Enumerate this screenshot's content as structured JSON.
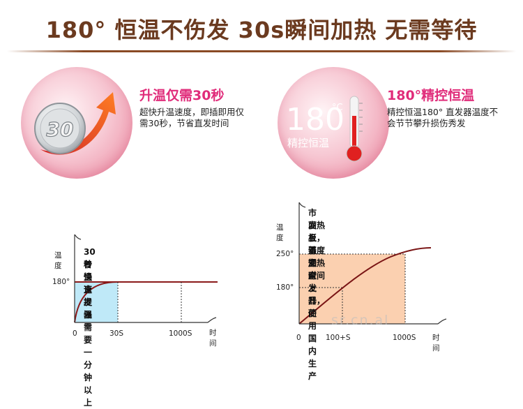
{
  "headline": "180° 恒温不伤发 30s瞬间加热 无需等待",
  "features": [
    {
      "title": "升温仅需30秒",
      "desc": "超快升温速度，即插即用仅需30秒，节省直发时间",
      "badge_text": "30",
      "icon": "stopwatch-icon"
    },
    {
      "title": "180°精控恒温",
      "desc": "精控恒温180° 直发器温度不会节节攀升损伤秀发",
      "badge_number": "180",
      "badge_unit": "°C",
      "badge_caption": "精控恒温",
      "icon": "thermometer-icon"
    }
  ],
  "charts": [
    {
      "ylabel": "温度",
      "y_tick": "180°",
      "x_ticks": [
        "0",
        "30S",
        "1000S"
      ],
      "xlabel": "时间",
      "note_lines": [
        "30秒快速提温",
        "普通直发器需要一分钟以上"
      ],
      "fill_color": "#bfe9f8"
    },
    {
      "ylabel": "温度",
      "y_ticks": [
        "250°",
        "180°"
      ],
      "x_ticks": [
        "0",
        "100+S",
        "1000S"
      ],
      "xlabel": "时间",
      "note_lines": [
        "市面上普通直发器使用国内生产",
        "发热板，温度加热时间上升，而",
        "且不安全"
      ],
      "fill_color": "#fbd0b0"
    }
  ],
  "chart_data": [
    {
      "type": "line",
      "ylabel": "温度",
      "xlabel": "时间",
      "x_ticks": [
        "0",
        "30S",
        "1000S"
      ],
      "y_ticks": [
        "180°"
      ],
      "series": [
        {
          "values_desc": [
            "0",
            "180°",
            "180°"
          ],
          "x": [
            "0",
            "30S",
            "1000S"
          ]
        }
      ]
    },
    {
      "type": "line",
      "ylabel": "温度",
      "xlabel": "时间",
      "x_ticks": [
        "0",
        "100+S",
        "1000S"
      ],
      "y_ticks": [
        "180°",
        "250°"
      ],
      "series": [
        {
          "x": [
            "0",
            "100+S",
            "1000S"
          ],
          "values_desc": [
            "0",
            "180°",
            "250°"
          ]
        }
      ]
    }
  ],
  "watermark": "sr.cn.al",
  "colors": {
    "headline": "#6b3a1f",
    "feature_title": "#e02c7a",
    "chart1_curve": "#8b1a1a",
    "chart2_curve": "#7a1515",
    "chart1_fill": "#bfe9f8",
    "chart2_fill": "#fbd0b0"
  }
}
